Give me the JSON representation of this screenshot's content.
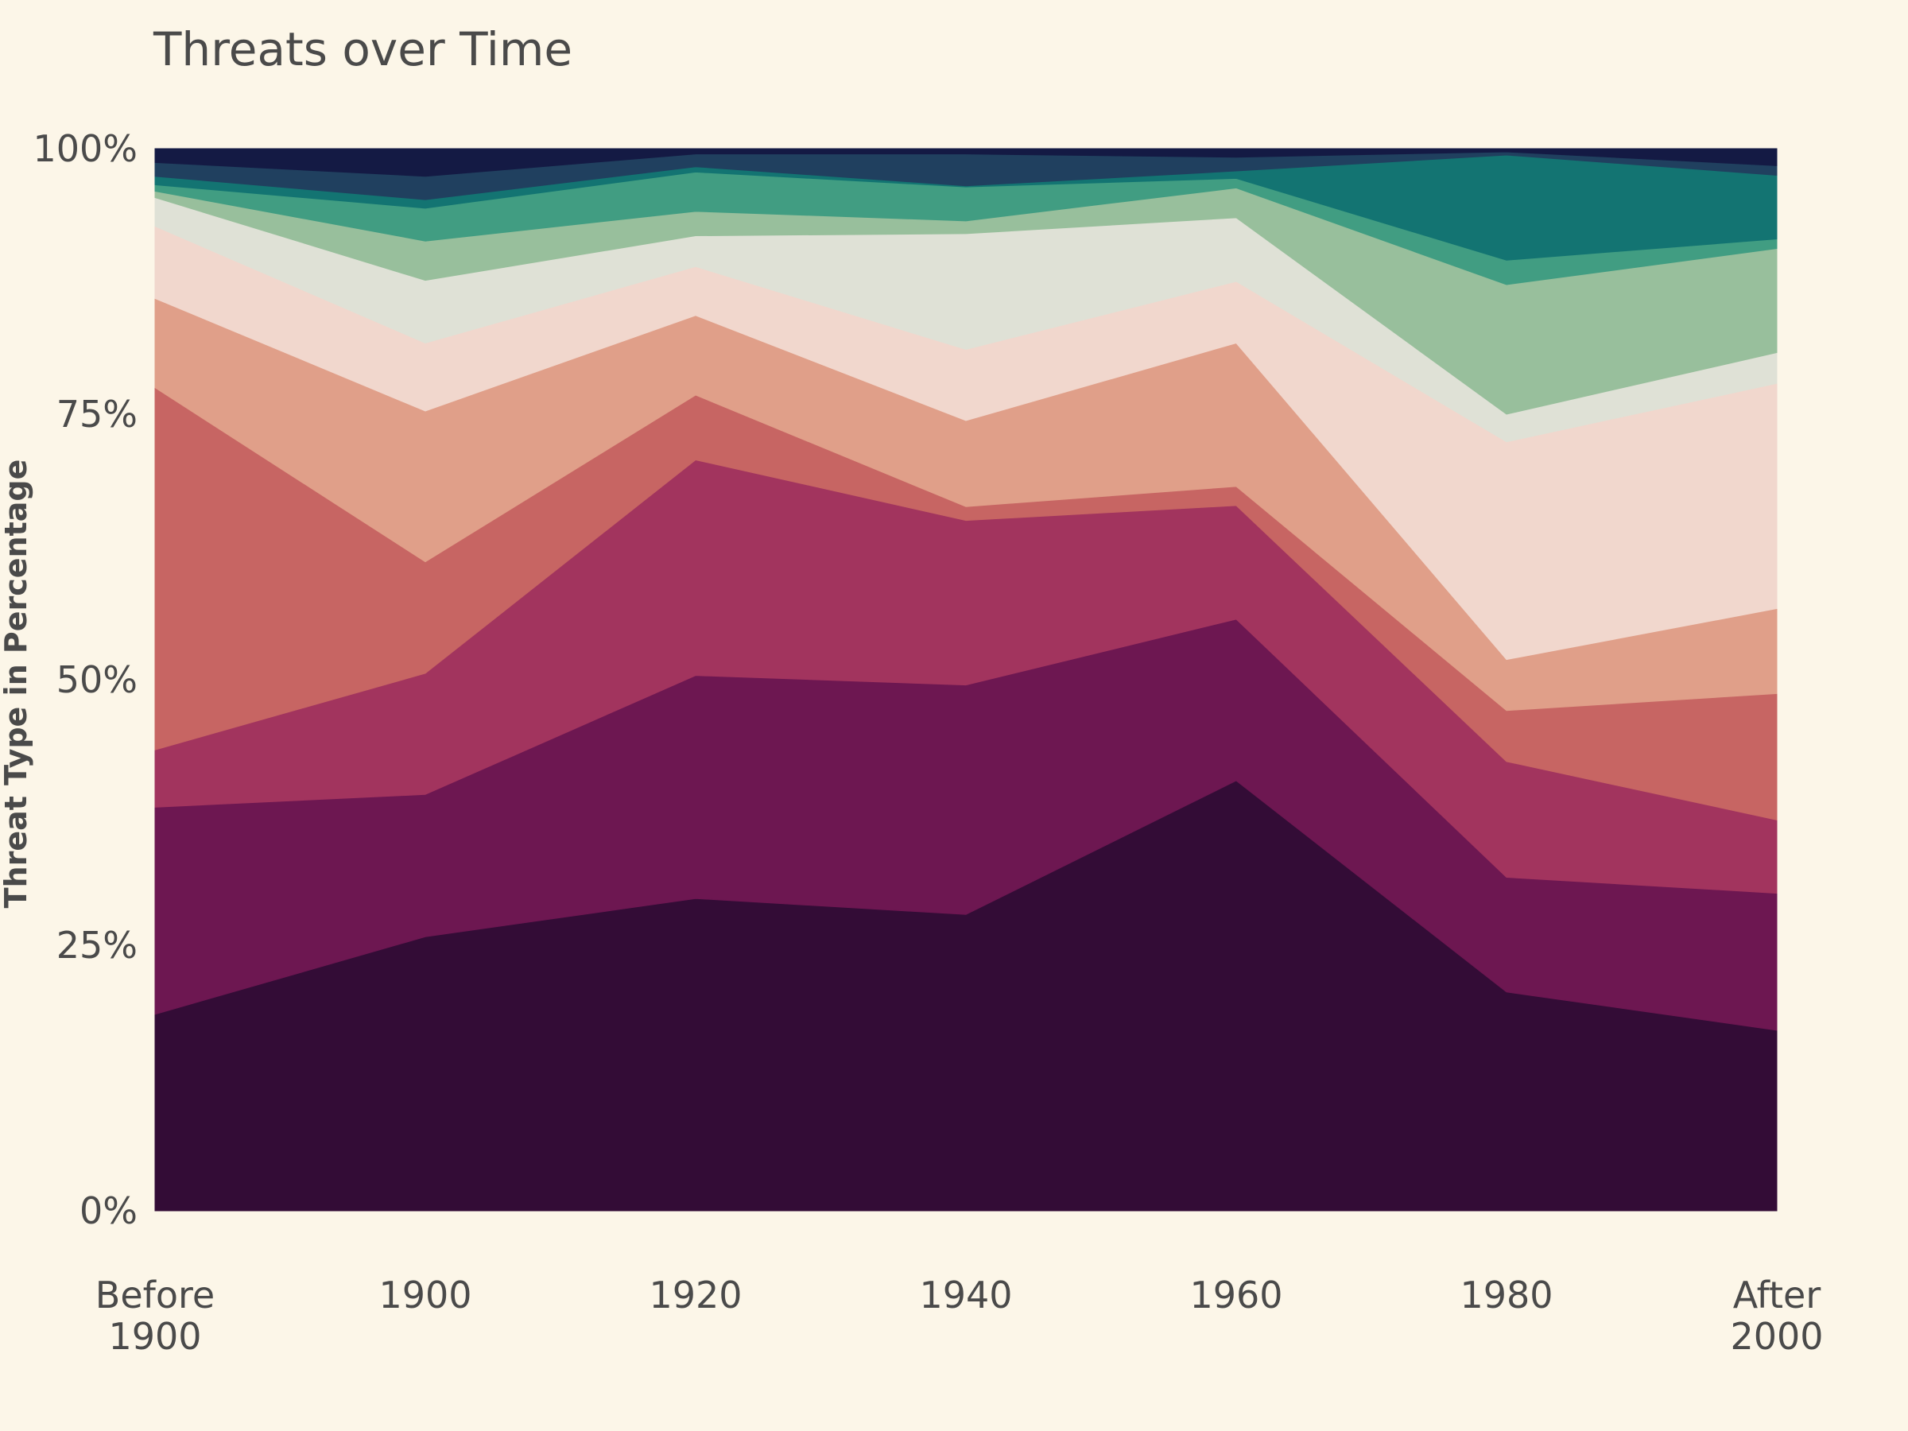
{
  "chart_data": {
    "type": "area",
    "stacked": true,
    "normalized": true,
    "title": "Threats over Time",
    "xlabel": "",
    "ylabel": "Threat Type in Percentage",
    "ylim": [
      0,
      100
    ],
    "y_ticks": [
      "0%",
      "25%",
      "50%",
      "75%",
      "100%"
    ],
    "categories": [
      [
        "Before",
        "1900"
      ],
      [
        "1900"
      ],
      [
        "1920"
      ],
      [
        "1940"
      ],
      [
        "1960"
      ],
      [
        "1980"
      ],
      [
        "After",
        "2000"
      ]
    ],
    "grid": false,
    "legend": "none",
    "series": [
      {
        "color": "#330c36",
        "values": [
          18.5,
          25.8,
          29.4,
          27.9,
          40.5,
          20.6,
          17.0
        ]
      },
      {
        "color": "#6d1751",
        "values": [
          19.5,
          13.4,
          21.0,
          21.6,
          15.2,
          10.8,
          12.9
        ]
      },
      {
        "color": "#a2345e",
        "values": [
          5.4,
          11.4,
          20.3,
          15.5,
          10.7,
          10.9,
          6.9
        ]
      },
      {
        "color": "#c76563",
        "values": [
          34.1,
          10.5,
          6.1,
          1.3,
          1.8,
          4.8,
          11.9
        ]
      },
      {
        "color": "#e09f89",
        "values": [
          8.4,
          14.2,
          7.5,
          8.1,
          13.5,
          4.8,
          8.0
        ]
      },
      {
        "color": "#f1d7cd",
        "values": [
          6.8,
          6.4,
          4.6,
          6.7,
          5.8,
          20.5,
          21.2
        ]
      },
      {
        "color": "#dfe1d6",
        "values": [
          2.7,
          5.9,
          2.9,
          10.9,
          6.0,
          2.6,
          2.9
        ]
      },
      {
        "color": "#98bf9c",
        "values": [
          0.6,
          3.7,
          2.3,
          1.2,
          2.8,
          12.2,
          9.8
        ]
      },
      {
        "color": "#419d82",
        "values": [
          0.6,
          3.1,
          3.7,
          3.2,
          0.9,
          2.3,
          0.9
        ]
      },
      {
        "color": "#137472",
        "values": [
          0.8,
          0.8,
          0.5,
          0.1,
          0.7,
          9.9,
          6.0
        ]
      },
      {
        "color": "#20405f",
        "values": [
          1.3,
          2.2,
          1.2,
          3.0,
          1.3,
          0.3,
          0.9
        ]
      },
      {
        "color": "#141a44",
        "values": [
          1.3,
          2.6,
          0.5,
          0.5,
          0.8,
          0.3,
          1.6
        ]
      }
    ]
  }
}
